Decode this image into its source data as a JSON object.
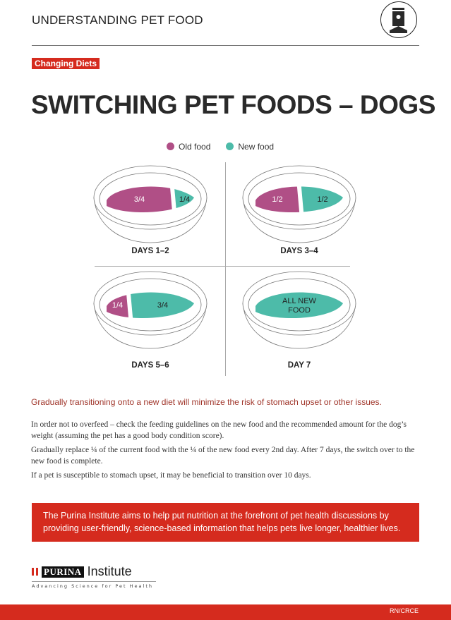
{
  "header": {
    "kicker": "UNDERSTANDING PET FOOD",
    "icon": "pet-food-bag-icon"
  },
  "tag": "Changing Diets",
  "title": "SWITCHING PET FOODS – DOGS",
  "legend": [
    {
      "label": "Old food",
      "color": "#b04f86"
    },
    {
      "label": "New food",
      "color": "#4dbba9"
    }
  ],
  "bowls": [
    {
      "label": "DAYS 1–2",
      "old_text": "3/4",
      "new_text": "1/4",
      "old_fraction": 0.75
    },
    {
      "label": "DAYS 3–4",
      "old_text": "1/2",
      "new_text": "1/2",
      "old_fraction": 0.5
    },
    {
      "label": "DAYS 5–6",
      "old_text": "1/4",
      "new_text": "3/4",
      "old_fraction": 0.25
    },
    {
      "label": "DAY 7",
      "new_text_line1": "ALL NEW",
      "new_text_line2": "FOOD",
      "old_fraction": 0
    }
  ],
  "subtitle": "Gradually transitioning onto a new diet will minimize the risk of stomach upset or other issues.",
  "paragraphs": [
    "In order not to overfeed – check the feeding guidelines on the new food and the recommended amount for the dog’s weight (assuming the pet has a good body condition score).",
    "Gradually replace ¼ of the current food with the ¼ of the new food every 2nd day. After 7 days, the switch over to the new food is complete.",
    "If a pet is susceptible to stomach upset, it may be beneficial to transition over 10 days."
  ],
  "mission": "The Purina Institute aims to help put nutrition at the forefront of pet health discussions by providing user-friendly, science-based information that helps pets live longer, healthier lives.",
  "logo": {
    "brand": "PURINA",
    "name": "Institute",
    "tagline": "Advancing Science for Pet Health"
  },
  "footer": {
    "code": "RN/CRCE"
  }
}
